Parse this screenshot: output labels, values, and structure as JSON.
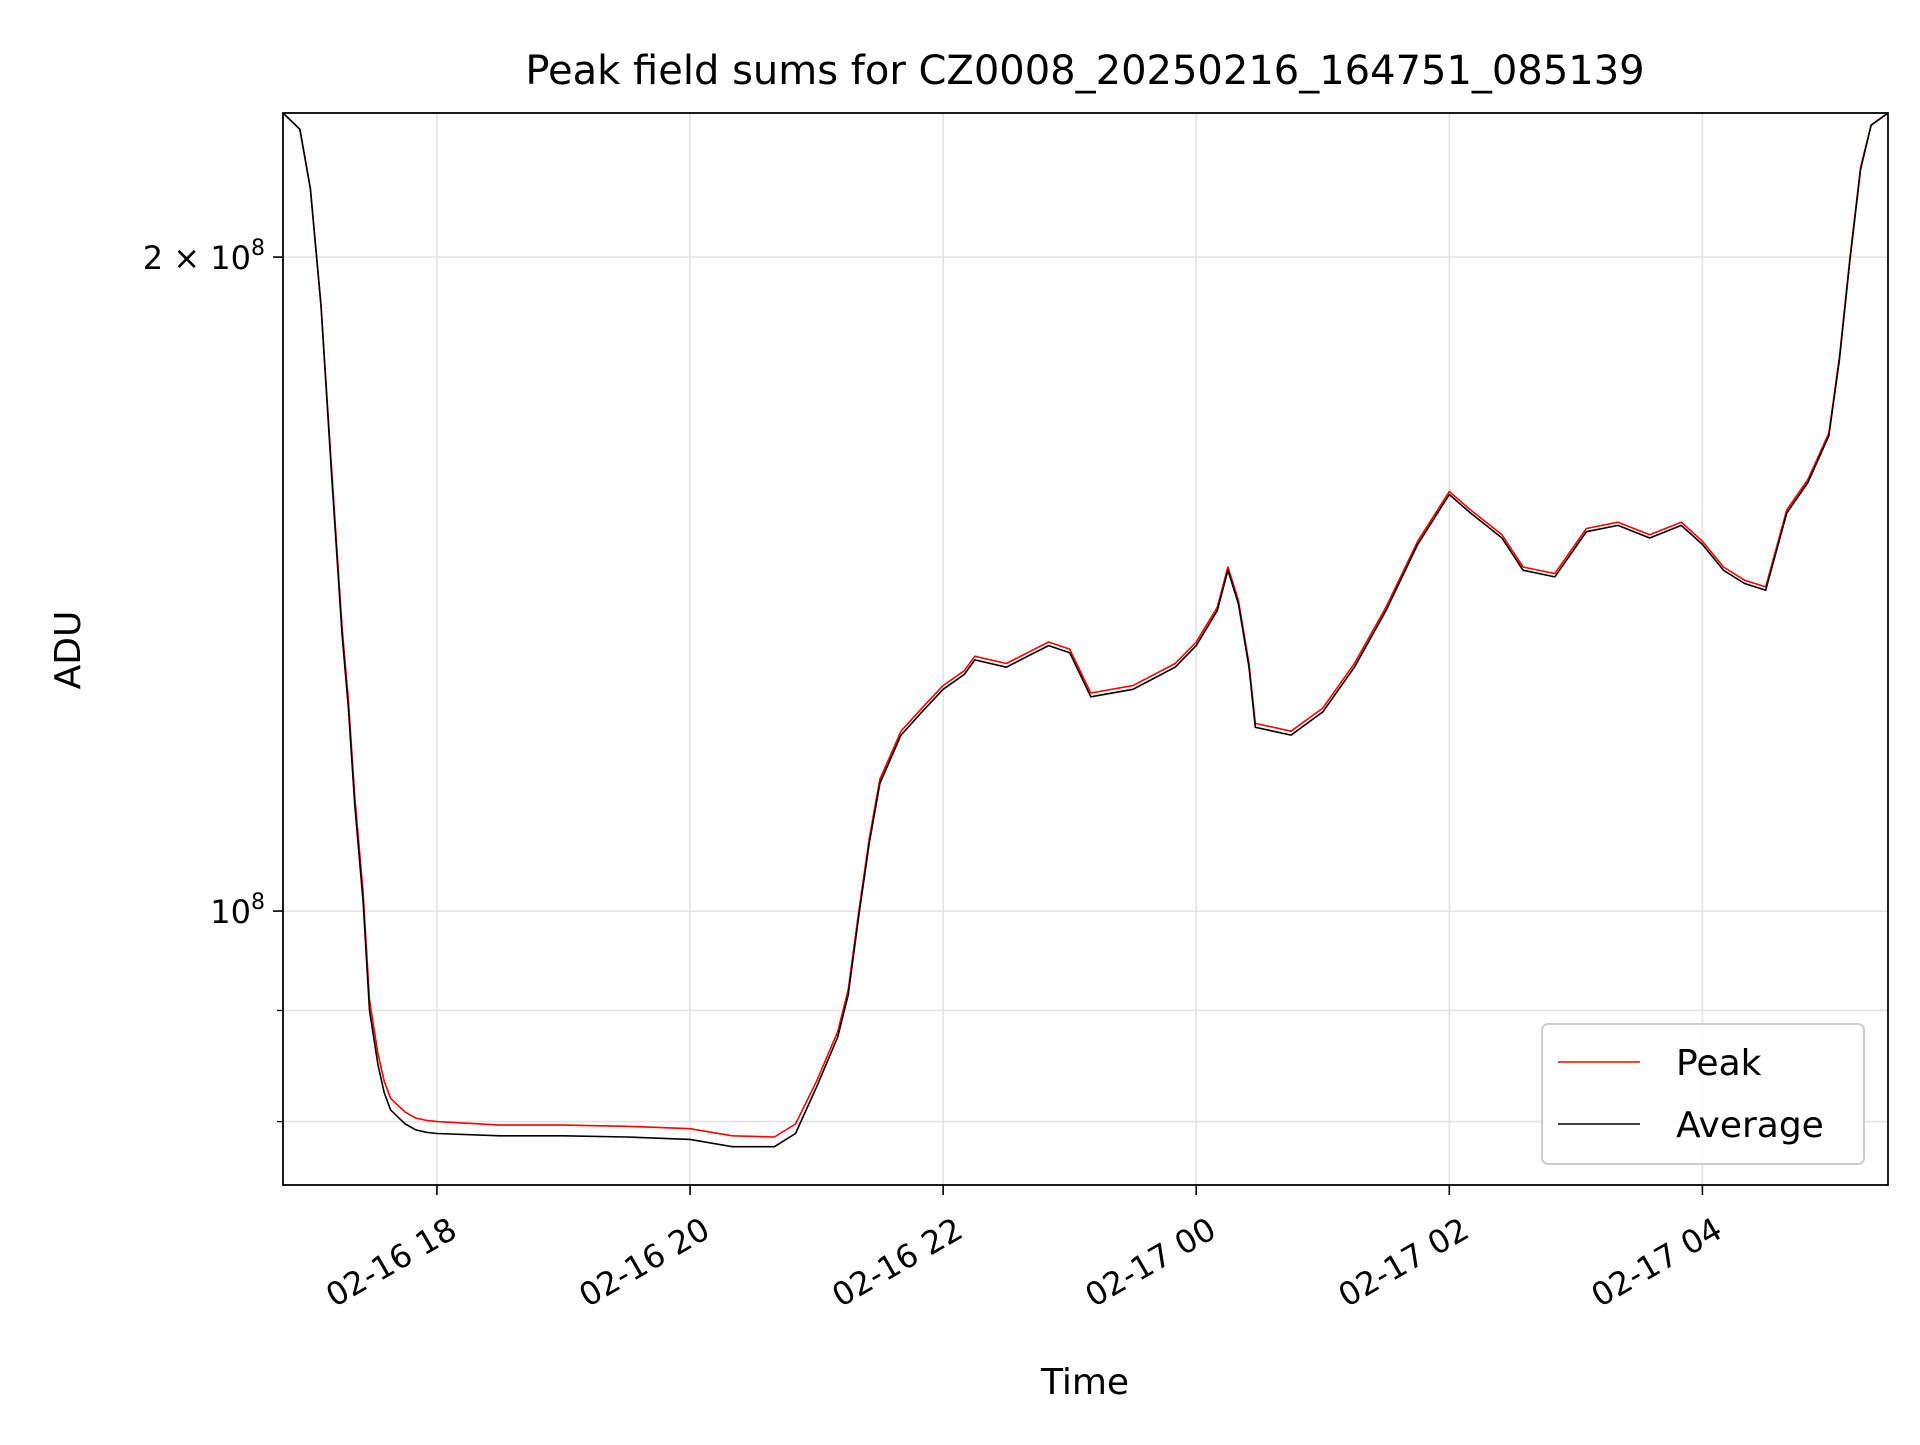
{
  "chart_data": {
    "type": "line",
    "title": "Peak field sums for CZ0008_20250216_164751_085139",
    "xlabel": "Time",
    "ylabel": "ADU",
    "y_scale": "log",
    "grid": true,
    "legend_position": "lower-right",
    "xlim": [
      "2025-02-16 16:47",
      "2025-02-17 05:28"
    ],
    "ylim": [
      74800000,
      233000000
    ],
    "x_ticks": [
      {
        "value": "2025-02-16 18:00",
        "label": "02-16 18"
      },
      {
        "value": "2025-02-16 20:00",
        "label": "02-16 20"
      },
      {
        "value": "2025-02-16 22:00",
        "label": "02-16 22"
      },
      {
        "value": "2025-02-17 00:00",
        "label": "02-17 00"
      },
      {
        "value": "2025-02-17 02:00",
        "label": "02-17 02"
      },
      {
        "value": "2025-02-17 04:00",
        "label": "02-17 04"
      }
    ],
    "y_major_ticks": [
      {
        "value": 100000000,
        "base": "10",
        "exp": "8",
        "coef": ""
      },
      {
        "value": 200000000,
        "base": "10",
        "exp": "8",
        "coef": "2 × "
      }
    ],
    "y_minor_ticks": [
      80000000,
      90000000
    ],
    "series": [
      {
        "name": "Peak",
        "color": "#ff0000",
        "x": [
          "2025-02-16 16:47",
          "2025-02-16 16:55",
          "2025-02-16 17:00",
          "2025-02-16 17:05",
          "2025-02-16 17:10",
          "2025-02-16 17:15",
          "2025-02-16 17:18",
          "2025-02-16 17:21",
          "2025-02-16 17:25",
          "2025-02-16 17:28",
          "2025-02-16 17:32",
          "2025-02-16 17:35",
          "2025-02-16 17:38",
          "2025-02-16 17:42",
          "2025-02-16 17:45",
          "2025-02-16 17:50",
          "2025-02-16 17:55",
          "2025-02-16 18:00",
          "2025-02-16 18:30",
          "2025-02-16 19:00",
          "2025-02-16 19:30",
          "2025-02-16 20:00",
          "2025-02-16 20:20",
          "2025-02-16 20:40",
          "2025-02-16 20:50",
          "2025-02-16 21:00",
          "2025-02-16 21:10",
          "2025-02-16 21:15",
          "2025-02-16 21:20",
          "2025-02-16 21:25",
          "2025-02-16 21:30",
          "2025-02-16 21:40",
          "2025-02-16 21:50",
          "2025-02-16 22:00",
          "2025-02-16 22:10",
          "2025-02-16 22:15",
          "2025-02-16 22:30",
          "2025-02-16 22:40",
          "2025-02-16 22:50",
          "2025-02-16 23:00",
          "2025-02-16 23:10",
          "2025-02-16 23:30",
          "2025-02-16 23:50",
          "2025-02-17 00:00",
          "2025-02-17 00:10",
          "2025-02-17 00:15",
          "2025-02-17 00:20",
          "2025-02-17 00:25",
          "2025-02-17 00:28",
          "2025-02-17 00:45",
          "2025-02-17 01:00",
          "2025-02-17 01:15",
          "2025-02-17 01:30",
          "2025-02-17 01:45",
          "2025-02-17 02:00",
          "2025-02-17 02:10",
          "2025-02-17 02:25",
          "2025-02-17 02:35",
          "2025-02-17 02:50",
          "2025-02-17 03:05",
          "2025-02-17 03:20",
          "2025-02-17 03:35",
          "2025-02-17 03:50",
          "2025-02-17 04:00",
          "2025-02-17 04:10",
          "2025-02-17 04:20",
          "2025-02-17 04:30",
          "2025-02-17 04:40",
          "2025-02-17 04:50",
          "2025-02-17 05:00",
          "2025-02-17 05:05",
          "2025-02-17 05:10",
          "2025-02-17 05:15",
          "2025-02-17 05:20",
          "2025-02-17 05:28"
        ],
        "values": [
          233000000,
          229000000,
          215000000,
          190000000,
          160000000,
          135000000,
          125000000,
          113000000,
          102000000,
          91000000,
          86000000,
          83500000,
          82000000,
          81300000,
          80800000,
          80300000,
          80100000,
          80000000,
          79700000,
          79700000,
          79600000,
          79400000,
          78800000,
          78700000,
          79800000,
          83500000,
          88000000,
          92000000,
          100000000,
          108000000,
          115000000,
          121000000,
          124000000,
          127000000,
          129000000,
          131000000,
          130000000,
          131500000,
          133000000,
          132000000,
          126000000,
          127000000,
          130000000,
          133000000,
          138000000,
          144000000,
          139000000,
          130000000,
          122000000,
          121000000,
          124000000,
          130000000,
          138000000,
          148000000,
          156000000,
          153000000,
          149000000,
          144000000,
          143000000,
          150000000,
          151000000,
          149000000,
          151000000,
          148000000,
          144000000,
          142000000,
          141000000,
          153000000,
          158000000,
          166000000,
          180000000,
          200000000,
          220000000,
          230000000,
          233000000
        ]
      },
      {
        "name": "Average",
        "color": "#000000",
        "x": [
          "2025-02-16 16:47",
          "2025-02-16 16:55",
          "2025-02-16 17:00",
          "2025-02-16 17:05",
          "2025-02-16 17:10",
          "2025-02-16 17:15",
          "2025-02-16 17:18",
          "2025-02-16 17:21",
          "2025-02-16 17:25",
          "2025-02-16 17:28",
          "2025-02-16 17:32",
          "2025-02-16 17:35",
          "2025-02-16 17:38",
          "2025-02-16 17:42",
          "2025-02-16 17:45",
          "2025-02-16 17:50",
          "2025-02-16 17:55",
          "2025-02-16 18:00",
          "2025-02-16 18:30",
          "2025-02-16 19:00",
          "2025-02-16 19:30",
          "2025-02-16 20:00",
          "2025-02-16 20:20",
          "2025-02-16 20:40",
          "2025-02-16 20:50",
          "2025-02-16 21:00",
          "2025-02-16 21:10",
          "2025-02-16 21:15",
          "2025-02-16 21:20",
          "2025-02-16 21:25",
          "2025-02-16 21:30",
          "2025-02-16 21:40",
          "2025-02-16 21:50",
          "2025-02-16 22:00",
          "2025-02-16 22:10",
          "2025-02-16 22:15",
          "2025-02-16 22:30",
          "2025-02-16 22:40",
          "2025-02-16 22:50",
          "2025-02-16 23:00",
          "2025-02-16 23:10",
          "2025-02-16 23:30",
          "2025-02-16 23:50",
          "2025-02-17 00:00",
          "2025-02-17 00:10",
          "2025-02-17 00:15",
          "2025-02-17 00:20",
          "2025-02-17 00:25",
          "2025-02-17 00:28",
          "2025-02-17 00:45",
          "2025-02-17 01:00",
          "2025-02-17 01:15",
          "2025-02-17 01:30",
          "2025-02-17 01:45",
          "2025-02-17 02:00",
          "2025-02-17 02:10",
          "2025-02-17 02:25",
          "2025-02-17 02:35",
          "2025-02-17 02:50",
          "2025-02-17 03:05",
          "2025-02-17 03:20",
          "2025-02-17 03:35",
          "2025-02-17 03:50",
          "2025-02-17 04:00",
          "2025-02-17 04:10",
          "2025-02-17 04:20",
          "2025-02-17 04:30",
          "2025-02-17 04:40",
          "2025-02-17 04:50",
          "2025-02-17 05:00",
          "2025-02-17 05:05",
          "2025-02-17 05:10",
          "2025-02-17 05:15",
          "2025-02-17 05:20",
          "2025-02-17 05:28"
        ],
        "values": [
          233000000,
          229000000,
          215000000,
          190000000,
          159000000,
          134000000,
          124000000,
          112000000,
          101000000,
          90000000,
          85000000,
          82500000,
          81000000,
          80300000,
          79800000,
          79300000,
          79100000,
          79000000,
          78800000,
          78800000,
          78700000,
          78500000,
          77900000,
          77900000,
          79000000,
          83000000,
          87500000,
          91500000,
          99500000,
          107500000,
          114500000,
          120500000,
          123500000,
          126500000,
          128500000,
          130500000,
          129500000,
          131000000,
          132500000,
          131500000,
          125500000,
          126500000,
          129500000,
          132500000,
          137500000,
          143500000,
          138500000,
          129500000,
          121500000,
          120500000,
          123500000,
          129500000,
          137500000,
          147500000,
          155500000,
          152500000,
          148500000,
          143500000,
          142500000,
          149500000,
          150500000,
          148500000,
          150500000,
          147500000,
          143500000,
          141500000,
          140500000,
          152500000,
          157500000,
          165500000,
          179500000,
          199500000,
          219500000,
          230000000,
          233000000
        ]
      }
    ]
  }
}
